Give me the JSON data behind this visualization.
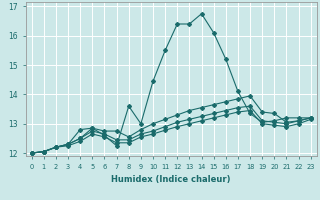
{
  "xlabel": "Humidex (Indice chaleur)",
  "bg_color": "#cce8e8",
  "line_color": "#1a6b6b",
  "grid_color": "#ffffff",
  "xmin": 0,
  "xmax": 23,
  "ymin": 12,
  "ymax": 17,
  "yticks": [
    12,
    13,
    14,
    15,
    16,
    17
  ],
  "xticks": [
    0,
    1,
    2,
    3,
    4,
    5,
    6,
    7,
    8,
    9,
    10,
    11,
    12,
    13,
    14,
    15,
    16,
    17,
    18,
    19,
    20,
    21,
    22,
    23
  ],
  "series": [
    {
      "x": [
        0,
        1,
        2,
        3,
        4,
        5,
        6,
        7,
        8,
        9,
        10,
        11,
        12,
        13,
        14,
        15,
        16,
        17,
        18,
        19,
        20,
        21,
        22,
        23
      ],
      "y": [
        12.0,
        12.05,
        12.2,
        12.3,
        12.5,
        12.85,
        12.6,
        12.25,
        13.6,
        13.0,
        14.45,
        15.5,
        16.4,
        16.4,
        16.75,
        16.1,
        15.2,
        14.1,
        13.35,
        13.05,
        13.1,
        13.2,
        13.2,
        13.2
      ]
    },
    {
      "x": [
        0,
        1,
        2,
        3,
        4,
        5,
        6,
        7,
        8,
        9,
        10,
        11,
        12,
        13,
        14,
        15,
        16,
        17,
        18,
        19,
        20,
        21,
        22,
        23
      ],
      "y": [
        12.0,
        12.05,
        12.2,
        12.3,
        12.8,
        12.85,
        12.75,
        12.75,
        12.55,
        12.8,
        13.0,
        13.15,
        13.3,
        13.45,
        13.55,
        13.65,
        13.75,
        13.85,
        13.95,
        13.4,
        13.35,
        13.05,
        13.1,
        13.2
      ]
    },
    {
      "x": [
        0,
        1,
        2,
        3,
        4,
        5,
        6,
        7,
        8,
        9,
        10,
        11,
        12,
        13,
        14,
        15,
        16,
        17,
        18,
        19,
        20,
        21,
        22,
        23
      ],
      "y": [
        12.0,
        12.05,
        12.2,
        12.3,
        12.5,
        12.75,
        12.65,
        12.45,
        12.45,
        12.65,
        12.75,
        12.9,
        13.05,
        13.15,
        13.25,
        13.35,
        13.45,
        13.55,
        13.6,
        13.1,
        13.05,
        13.0,
        13.1,
        13.2
      ]
    },
    {
      "x": [
        0,
        1,
        2,
        3,
        4,
        5,
        6,
        7,
        8,
        9,
        10,
        11,
        12,
        13,
        14,
        15,
        16,
        17,
        18,
        19,
        20,
        21,
        22,
        23
      ],
      "y": [
        12.0,
        12.05,
        12.2,
        12.25,
        12.4,
        12.65,
        12.55,
        12.35,
        12.35,
        12.55,
        12.65,
        12.78,
        12.9,
        13.0,
        13.1,
        13.2,
        13.3,
        13.4,
        13.45,
        13.0,
        12.95,
        12.9,
        13.0,
        13.15
      ]
    }
  ]
}
